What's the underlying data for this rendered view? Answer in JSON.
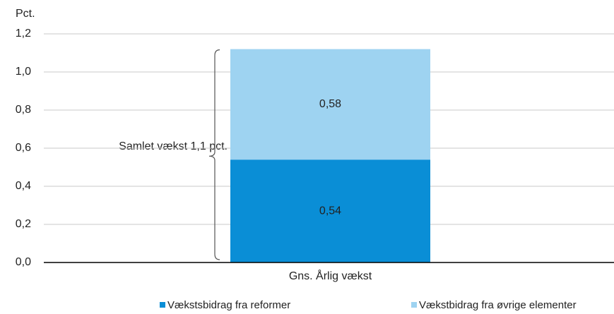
{
  "chart_data": {
    "type": "stacked_bar",
    "ylabel": "Pct.",
    "annotation": "Samlet vækst 1,1 pct.",
    "categories": [
      "Gns. Årlig vækst"
    ],
    "series": [
      {
        "name": "Vækstsbidrag fra reformer",
        "color": "#0a8ed6",
        "values": [
          0.54
        ],
        "value_labels": [
          "0,54"
        ]
      },
      {
        "name": "Vækstbidrag fra øvrige elementer",
        "color": "#9ed3f1",
        "values": [
          0.58
        ],
        "value_labels": [
          "0,58"
        ]
      }
    ],
    "ylim": [
      0,
      1.2
    ],
    "yticks": [
      {
        "value": 0,
        "label": "0,0"
      },
      {
        "value": 0.2,
        "label": "0,2"
      },
      {
        "value": 0.4,
        "label": "0,4"
      },
      {
        "value": 0.6,
        "label": "0,6"
      },
      {
        "value": 0.8,
        "label": "0,8"
      },
      {
        "value": 1.0,
        "label": "1,0"
      },
      {
        "value": 1.2,
        "label": "1,2"
      }
    ],
    "grid": true
  }
}
